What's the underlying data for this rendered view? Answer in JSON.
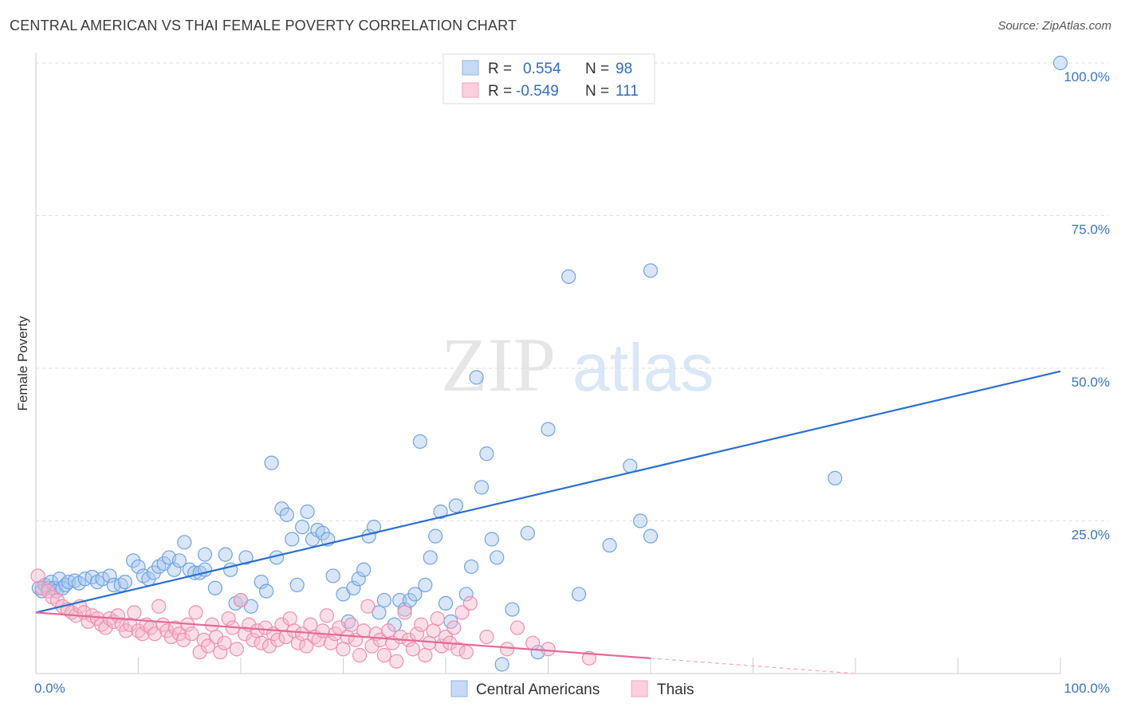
{
  "header": {
    "title": "CENTRAL AMERICAN VS THAI FEMALE POVERTY CORRELATION CHART",
    "source": "Source: ZipAtlas.com"
  },
  "watermark": {
    "zip": "ZIP",
    "atlas": "atlas"
  },
  "legend": {
    "rows": [
      {
        "r_label": "R =",
        "r_value": "0.554",
        "n_label": "N =",
        "n_value": "98",
        "color": "#a9c8f0"
      },
      {
        "r_label": "R =",
        "r_value": "-0.549",
        "n_label": "N =",
        "n_value": "111",
        "color": "#f6b8cc"
      }
    ]
  },
  "bottom_legend": [
    {
      "label": "Central Americans",
      "color": "#a9c8f0"
    },
    {
      "label": "Thais",
      "color": "#f6b8cc"
    }
  ],
  "chart_data": {
    "type": "scatter",
    "title": "CENTRAL AMERICAN VS THAI FEMALE POVERTY CORRELATION CHART",
    "xlabel": "",
    "ylabel": "Female Poverty",
    "xlim": [
      0,
      100
    ],
    "ylim": [
      0,
      100
    ],
    "x_tick_labels": [
      "0.0%",
      "100.0%"
    ],
    "y_tick_labels": [
      "25.0%",
      "50.0%",
      "75.0%",
      "100.0%"
    ],
    "y_ticks": [
      25,
      50,
      75,
      100
    ],
    "grid": true,
    "legend_position": "top-center",
    "series": [
      {
        "name": "Central Americans",
        "color": "#6fa3e6",
        "line_color": "#2b6fcf",
        "trend": {
          "x": [
            0,
            100
          ],
          "y": [
            10.0,
            49.5
          ]
        },
        "points": [
          [
            0.3,
            14
          ],
          [
            0.6,
            13.5
          ],
          [
            0.9,
            14.5
          ],
          [
            1.2,
            14
          ],
          [
            1.5,
            15
          ],
          [
            1.8,
            14
          ],
          [
            2,
            13.5
          ],
          [
            2.3,
            15.5
          ],
          [
            2.6,
            14
          ],
          [
            2.9,
            14.5
          ],
          [
            3.2,
            15
          ],
          [
            3.8,
            15.2
          ],
          [
            4.2,
            14.8
          ],
          [
            4.8,
            15.5
          ],
          [
            5.5,
            15.8
          ],
          [
            6,
            15
          ],
          [
            6.5,
            15.5
          ],
          [
            7.2,
            16
          ],
          [
            7.6,
            14.5
          ],
          [
            8.3,
            14.5
          ],
          [
            8.7,
            15
          ],
          [
            9.5,
            18.5
          ],
          [
            10,
            17.5
          ],
          [
            10.5,
            16
          ],
          [
            11,
            15.5
          ],
          [
            11.5,
            16.5
          ],
          [
            12,
            17.5
          ],
          [
            12.5,
            18
          ],
          [
            13,
            19
          ],
          [
            13.5,
            17
          ],
          [
            14,
            18.5
          ],
          [
            14.5,
            21.5
          ],
          [
            15,
            17
          ],
          [
            15.5,
            16.5
          ],
          [
            16,
            16.5
          ],
          [
            16.5,
            17
          ],
          [
            16.5,
            19.5
          ],
          [
            17.5,
            14
          ],
          [
            18.5,
            19.5
          ],
          [
            19,
            17
          ],
          [
            19.5,
            11.5
          ],
          [
            20,
            12
          ],
          [
            20.5,
            19
          ],
          [
            21,
            11
          ],
          [
            22,
            15
          ],
          [
            22.5,
            13.5
          ],
          [
            23,
            34.5
          ],
          [
            23.5,
            19
          ],
          [
            24,
            27
          ],
          [
            24.5,
            26
          ],
          [
            25,
            22
          ],
          [
            25.5,
            14.5
          ],
          [
            26,
            24
          ],
          [
            26.5,
            26.5
          ],
          [
            27,
            22
          ],
          [
            27.5,
            23.5
          ],
          [
            28,
            23
          ],
          [
            28.5,
            22
          ],
          [
            29,
            16
          ],
          [
            30,
            13
          ],
          [
            30.5,
            8.5
          ],
          [
            31,
            14
          ],
          [
            31.5,
            15.5
          ],
          [
            32,
            17
          ],
          [
            32.5,
            22.5
          ],
          [
            33,
            24
          ],
          [
            33.5,
            10
          ],
          [
            34,
            12
          ],
          [
            35,
            8
          ],
          [
            35.5,
            12
          ],
          [
            36,
            10.5
          ],
          [
            36.5,
            12
          ],
          [
            37,
            13
          ],
          [
            37.5,
            38
          ],
          [
            38,
            14.5
          ],
          [
            38.5,
            19
          ],
          [
            39,
            22.5
          ],
          [
            39.5,
            26.5
          ],
          [
            40,
            11.5
          ],
          [
            40.5,
            8.5
          ],
          [
            41,
            27.5
          ],
          [
            42,
            13
          ],
          [
            42.5,
            17.5
          ],
          [
            43,
            48.5
          ],
          [
            43.5,
            30.5
          ],
          [
            44,
            36
          ],
          [
            44.5,
            22
          ],
          [
            45,
            19
          ],
          [
            45.5,
            1.5
          ],
          [
            46.5,
            10.5
          ],
          [
            48,
            23
          ],
          [
            49,
            3.5
          ],
          [
            50,
            40
          ],
          [
            52,
            65
          ],
          [
            53,
            13
          ],
          [
            56,
            21
          ],
          [
            58,
            34
          ],
          [
            59,
            25
          ],
          [
            60,
            22.5
          ],
          [
            60,
            66
          ],
          [
            78,
            32
          ],
          [
            100,
            100
          ]
        ]
      },
      {
        "name": "Thais",
        "color": "#f08fb0",
        "line_color": "#e36a98",
        "trend": {
          "x": [
            0,
            60
          ],
          "y": [
            10.0,
            2.5
          ]
        },
        "trend_dashed": {
          "x": [
            60,
            80
          ],
          "y": [
            2.5,
            0
          ]
        },
        "points": [
          [
            0.2,
            16
          ],
          [
            0.6,
            14
          ],
          [
            1.2,
            13.5
          ],
          [
            1.6,
            12.5
          ],
          [
            2.1,
            12
          ],
          [
            2.6,
            11
          ],
          [
            3.1,
            10.5
          ],
          [
            3.5,
            10
          ],
          [
            3.9,
            9.5
          ],
          [
            4.3,
            11
          ],
          [
            4.7,
            10
          ],
          [
            5.1,
            8.5
          ],
          [
            5.5,
            9.5
          ],
          [
            6,
            9
          ],
          [
            6.4,
            8
          ],
          [
            6.8,
            7.5
          ],
          [
            7.2,
            9
          ],
          [
            7.6,
            8.5
          ],
          [
            8,
            9.5
          ],
          [
            8.4,
            8
          ],
          [
            8.8,
            7
          ],
          [
            9.2,
            8
          ],
          [
            9.6,
            10
          ],
          [
            10,
            7
          ],
          [
            10.4,
            6.5
          ],
          [
            10.8,
            8
          ],
          [
            11.2,
            7.5
          ],
          [
            11.6,
            6.5
          ],
          [
            12,
            11
          ],
          [
            12.4,
            8
          ],
          [
            12.8,
            7
          ],
          [
            13.2,
            6
          ],
          [
            13.6,
            7.5
          ],
          [
            14,
            6.5
          ],
          [
            14.4,
            5.5
          ],
          [
            14.8,
            8
          ],
          [
            15.2,
            6.5
          ],
          [
            15.6,
            10
          ],
          [
            16,
            3.5
          ],
          [
            16.4,
            5.5
          ],
          [
            16.8,
            4.5
          ],
          [
            17.2,
            8
          ],
          [
            17.6,
            6
          ],
          [
            18,
            3.5
          ],
          [
            18.4,
            5
          ],
          [
            18.8,
            9
          ],
          [
            19.2,
            7.5
          ],
          [
            19.6,
            4
          ],
          [
            20,
            12
          ],
          [
            20.4,
            6.5
          ],
          [
            20.8,
            8
          ],
          [
            21.2,
            5.5
          ],
          [
            21.6,
            7
          ],
          [
            22,
            5
          ],
          [
            22.4,
            7.5
          ],
          [
            22.8,
            4.5
          ],
          [
            23.2,
            6.5
          ],
          [
            23.6,
            5.5
          ],
          [
            24,
            8
          ],
          [
            24.4,
            6
          ],
          [
            24.8,
            9
          ],
          [
            25.2,
            7
          ],
          [
            25.6,
            5
          ],
          [
            26,
            6.5
          ],
          [
            26.4,
            4.5
          ],
          [
            26.8,
            8
          ],
          [
            27.2,
            6
          ],
          [
            27.6,
            5.5
          ],
          [
            28,
            7
          ],
          [
            28.4,
            9.5
          ],
          [
            28.8,
            5
          ],
          [
            29.2,
            6.5
          ],
          [
            29.6,
            7.5
          ],
          [
            30,
            4
          ],
          [
            30.4,
            6
          ],
          [
            30.8,
            8
          ],
          [
            31.2,
            5.5
          ],
          [
            31.6,
            3
          ],
          [
            32,
            7
          ],
          [
            32.4,
            11
          ],
          [
            32.8,
            4.5
          ],
          [
            33.2,
            6.5
          ],
          [
            33.6,
            5.5
          ],
          [
            34,
            3
          ],
          [
            34.4,
            7
          ],
          [
            34.8,
            5
          ],
          [
            35.2,
            2
          ],
          [
            35.6,
            6
          ],
          [
            36,
            10
          ],
          [
            36.4,
            5.5
          ],
          [
            36.8,
            4
          ],
          [
            37.2,
            6.5
          ],
          [
            37.6,
            8
          ],
          [
            38,
            3
          ],
          [
            38.4,
            5
          ],
          [
            38.8,
            7
          ],
          [
            39.2,
            9
          ],
          [
            39.6,
            4.5
          ],
          [
            40,
            6
          ],
          [
            40.4,
            5
          ],
          [
            40.8,
            7.5
          ],
          [
            41.2,
            4
          ],
          [
            41.6,
            10
          ],
          [
            42,
            3.5
          ],
          [
            42.4,
            11.5
          ],
          [
            44,
            6
          ],
          [
            46,
            4
          ],
          [
            47,
            7.5
          ],
          [
            48.5,
            5
          ],
          [
            50,
            4
          ],
          [
            54,
            2.5
          ]
        ]
      }
    ]
  }
}
